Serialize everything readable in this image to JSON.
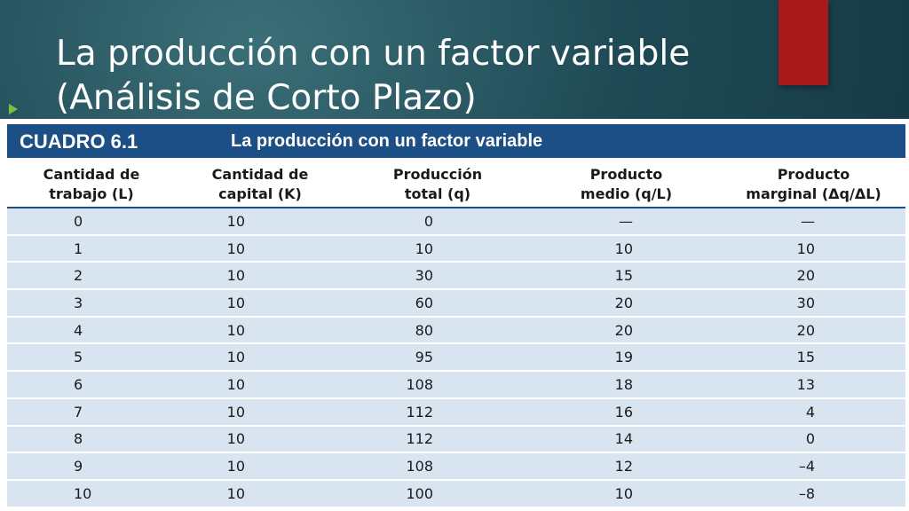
{
  "slide": {
    "title_line1": "La producción con un factor variable",
    "title_line2": "(Análisis de Corto Plazo)",
    "colors": {
      "accent_red": "#a8191b",
      "table_header_blue": "#1c4f86",
      "row_fill": "#d9e4f1",
      "bullet_green": "#7fbf3f"
    }
  },
  "table": {
    "label": "CUADRO 6.1",
    "title": "La producción con un factor variable",
    "headers": [
      {
        "line1": "Cantidad de",
        "line2": "trabajo (L)"
      },
      {
        "line1": "Cantidad de",
        "line2": "capital (K)"
      },
      {
        "line1": "Producción",
        "line2": "total (q)"
      },
      {
        "line1": "Producto",
        "line2": "medio (q/L)"
      },
      {
        "line1": "Producto",
        "line2": "marginal (Δq/ΔL)"
      }
    ],
    "rows": [
      [
        "0",
        "10",
        "0",
        "—",
        "—"
      ],
      [
        "1",
        "10",
        "10",
        "10",
        "10"
      ],
      [
        "2",
        "10",
        "30",
        "15",
        "20"
      ],
      [
        "3",
        "10",
        "60",
        "20",
        "30"
      ],
      [
        "4",
        "10",
        "80",
        "20",
        "20"
      ],
      [
        "5",
        "10",
        "95",
        "19",
        "15"
      ],
      [
        "6",
        "10",
        "108",
        "18",
        "13"
      ],
      [
        "7",
        "10",
        "112",
        "16",
        "4"
      ],
      [
        "8",
        "10",
        "112",
        "14",
        "0"
      ],
      [
        "9",
        "10",
        "108",
        "12",
        "–4"
      ],
      [
        "10",
        "10",
        "100",
        "10",
        "–8"
      ]
    ]
  }
}
